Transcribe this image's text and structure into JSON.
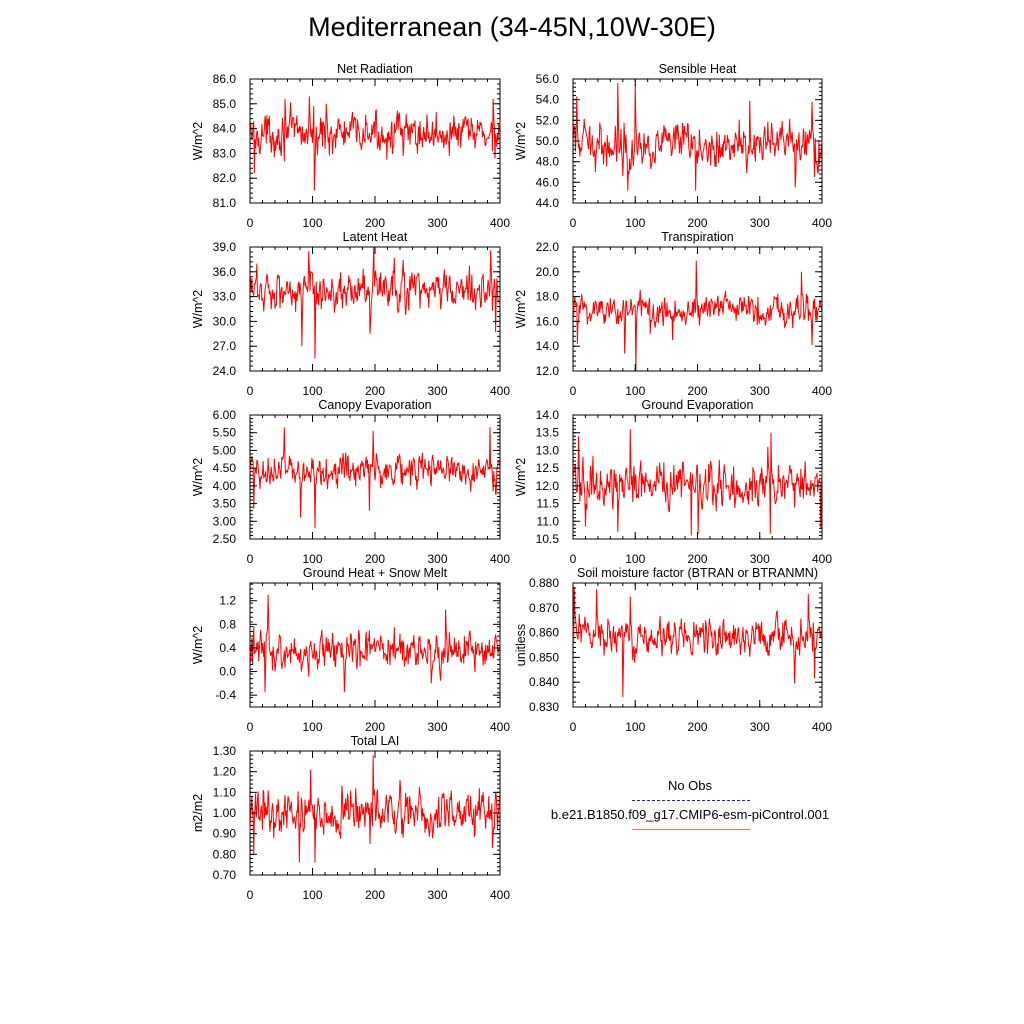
{
  "title": "Mediterranean (34-45N,10W-30E)",
  "legend": {
    "obs_label": "No Obs",
    "model_label": "b.e21.B1850.f09_g17.CMIP6-esm-piControl.001",
    "obs_color": "#20208a",
    "model_color": "#ff0000"
  },
  "chart_data": [
    {
      "type": "line",
      "title": "Net Radiation",
      "ylabel": "W/m^2",
      "xlim": [
        0,
        400
      ],
      "ylim": [
        81.0,
        86.0
      ],
      "yticks": [
        81.0,
        82.0,
        83.0,
        84.0,
        85.0,
        86.0
      ],
      "ytick_labels": [
        "81.0",
        "82.0",
        "83.0",
        "84.0",
        "85.0",
        "86.0"
      ],
      "xticks": [
        0,
        100,
        200,
        300,
        400
      ],
      "xtick_labels": [
        "0",
        "100",
        "200",
        "300",
        "400"
      ],
      "mean": 83.8,
      "amplitude": 0.55,
      "color": "#ff0000",
      "spikes": [
        [
          7,
          82.2
        ],
        [
          56,
          85.2
        ],
        [
          95,
          85.3
        ],
        [
          103,
          81.5
        ],
        [
          122,
          85.0
        ],
        [
          245,
          82.9
        ],
        [
          389,
          85.2
        ],
        [
          392,
          82.8
        ]
      ]
    },
    {
      "type": "line",
      "title": "Sensible Heat",
      "ylabel": "W/m^2",
      "xlim": [
        0,
        400
      ],
      "ylim": [
        44.0,
        56.0
      ],
      "yticks": [
        44.0,
        46.0,
        48.0,
        50.0,
        52.0,
        54.0,
        56.0
      ],
      "ytick_labels": [
        "44.0",
        "46.0",
        "48.0",
        "50.0",
        "52.0",
        "54.0",
        "56.0"
      ],
      "xticks": [
        0,
        100,
        200,
        300,
        400
      ],
      "xtick_labels": [
        "0",
        "100",
        "200",
        "300",
        "400"
      ],
      "mean": 49.6,
      "amplitude": 1.4,
      "color": "#ff0000",
      "spikes": [
        [
          6,
          54.3
        ],
        [
          72,
          55.6
        ],
        [
          88,
          45.2
        ],
        [
          100,
          55.5
        ],
        [
          197,
          45.2
        ],
        [
          284,
          53.9
        ],
        [
          357,
          45.5
        ],
        [
          384,
          53.8
        ],
        [
          388,
          46.5
        ]
      ]
    },
    {
      "type": "line",
      "title": "Latent Heat",
      "ylabel": "W/m^2",
      "xlim": [
        0,
        400
      ],
      "ylim": [
        24.0,
        39.0
      ],
      "yticks": [
        24.0,
        27.0,
        30.0,
        33.0,
        36.0,
        39.0
      ],
      "ytick_labels": [
        "24.0",
        "27.0",
        "30.0",
        "33.0",
        "36.0",
        "39.0"
      ],
      "xticks": [
        0,
        100,
        200,
        300,
        400
      ],
      "xtick_labels": [
        "0",
        "100",
        "200",
        "300",
        "400"
      ],
      "mean": 33.8,
      "amplitude": 1.7,
      "color": "#ff0000",
      "spikes": [
        [
          83,
          27.0
        ],
        [
          94,
          38.5
        ],
        [
          104,
          25.5
        ],
        [
          198,
          39.0
        ],
        [
          192,
          28.5
        ],
        [
          385,
          38.6
        ],
        [
          393,
          28.7
        ]
      ]
    },
    {
      "type": "line",
      "title": "Transpiration",
      "ylabel": "W/m^2",
      "xlim": [
        0,
        400
      ],
      "ylim": [
        12.0,
        22.0
      ],
      "yticks": [
        12.0,
        14.0,
        16.0,
        18.0,
        20.0,
        22.0
      ],
      "ytick_labels": [
        "12.0",
        "14.0",
        "16.0",
        "18.0",
        "20.0",
        "22.0"
      ],
      "xticks": [
        0,
        100,
        200,
        300,
        400
      ],
      "xtick_labels": [
        "0",
        "100",
        "200",
        "300",
        "400"
      ],
      "mean": 17.0,
      "amplitude": 0.9,
      "color": "#ff0000",
      "spikes": [
        [
          7,
          14.2
        ],
        [
          83,
          13.4
        ],
        [
          101,
          12.0
        ],
        [
          124,
          15.0
        ],
        [
          198,
          20.9
        ],
        [
          160,
          14.5
        ],
        [
          367,
          20.0
        ],
        [
          384,
          14.1
        ]
      ]
    },
    {
      "type": "line",
      "title": "Canopy Evaporation",
      "ylabel": "W/m^2",
      "xlim": [
        0,
        400
      ],
      "ylim": [
        2.5,
        6.0
      ],
      "yticks": [
        2.5,
        3.0,
        3.5,
        4.0,
        4.5,
        5.0,
        5.5,
        6.0
      ],
      "ytick_labels": [
        "2.50",
        "3.00",
        "3.50",
        "4.00",
        "4.50",
        "5.00",
        "5.50",
        "6.00"
      ],
      "xticks": [
        0,
        100,
        200,
        300,
        400
      ],
      "xtick_labels": [
        "0",
        "100",
        "200",
        "300",
        "400"
      ],
      "mean": 4.45,
      "amplitude": 0.32,
      "color": "#ff0000",
      "spikes": [
        [
          6,
          3.35
        ],
        [
          55,
          5.65
        ],
        [
          81,
          3.1
        ],
        [
          104,
          2.8
        ],
        [
          197,
          5.55
        ],
        [
          191,
          3.3
        ],
        [
          384,
          5.65
        ],
        [
          393,
          3.75
        ]
      ]
    },
    {
      "type": "line",
      "title": "Ground Evaporation",
      "ylabel": "W/m^2",
      "xlim": [
        0,
        400
      ],
      "ylim": [
        10.5,
        14.0
      ],
      "yticks": [
        10.5,
        11.0,
        11.5,
        12.0,
        12.5,
        13.0,
        13.5,
        14.0
      ],
      "ytick_labels": [
        "10.5",
        "11.0",
        "11.5",
        "12.0",
        "12.5",
        "13.0",
        "13.5",
        "14.0"
      ],
      "xticks": [
        0,
        100,
        200,
        300,
        400
      ],
      "xtick_labels": [
        "0",
        "100",
        "200",
        "300",
        "400"
      ],
      "mean": 12.05,
      "amplitude": 0.42,
      "color": "#ff0000",
      "spikes": [
        [
          9,
          13.4
        ],
        [
          20,
          10.85
        ],
        [
          92,
          13.6
        ],
        [
          72,
          10.7
        ],
        [
          190,
          10.6
        ],
        [
          201,
          10.65
        ],
        [
          317,
          10.65
        ],
        [
          318,
          13.5
        ],
        [
          398,
          10.8
        ],
        [
          313,
          13.1
        ]
      ]
    },
    {
      "type": "line",
      "title": "Ground Heat + Snow Melt",
      "ylabel": "W/m^2",
      "xlim": [
        0,
        400
      ],
      "ylim": [
        -0.6,
        1.5
      ],
      "yticks": [
        -0.4,
        0.0,
        0.4,
        0.8,
        1.2
      ],
      "ytick_labels": [
        "-0.4",
        "0.0",
        "0.4",
        "0.8",
        "1.2"
      ],
      "xticks": [
        0,
        100,
        200,
        300,
        400
      ],
      "xtick_labels": [
        "0",
        "100",
        "200",
        "300",
        "400"
      ],
      "mean": 0.35,
      "amplitude": 0.22,
      "color": "#ff0000",
      "spikes": [
        [
          29,
          1.3
        ],
        [
          24,
          -0.35
        ],
        [
          151,
          -0.35
        ],
        [
          313,
          1.05
        ],
        [
          290,
          -0.2
        ]
      ]
    },
    {
      "type": "line",
      "title": "Soil moisture factor (BTRAN or BTRANMN)",
      "ylabel": "unitless",
      "xlim": [
        0,
        400
      ],
      "ylim": [
        0.83,
        0.88
      ],
      "yticks": [
        0.83,
        0.84,
        0.85,
        0.86,
        0.87,
        0.88
      ],
      "ytick_labels": [
        "0.830",
        "0.840",
        "0.850",
        "0.860",
        "0.870",
        "0.880"
      ],
      "xticks": [
        0,
        100,
        200,
        300,
        400
      ],
      "xtick_labels": [
        "0",
        "100",
        "200",
        "300",
        "400"
      ],
      "mean": 0.8585,
      "amplitude": 0.0048,
      "color": "#ff0000",
      "spikes": [
        [
          2,
          0.8785
        ],
        [
          38,
          0.8775
        ],
        [
          80,
          0.834
        ],
        [
          92,
          0.8745
        ],
        [
          356,
          0.8395
        ],
        [
          388,
          0.8415
        ],
        [
          378,
          0.8755
        ]
      ]
    },
    {
      "type": "line",
      "title": "Total LAI",
      "ylabel": "m2/m2",
      "xlim": [
        0,
        400
      ],
      "ylim": [
        0.7,
        1.3
      ],
      "yticks": [
        0.7,
        0.8,
        0.9,
        1.0,
        1.1,
        1.2,
        1.3
      ],
      "ytick_labels": [
        "0.70",
        "0.80",
        "0.90",
        "1.00",
        "1.10",
        "1.20",
        "1.30"
      ],
      "xticks": [
        0,
        100,
        200,
        300,
        400
      ],
      "xtick_labels": [
        "0",
        "100",
        "200",
        "300",
        "400"
      ],
      "mean": 1.0,
      "amplitude": 0.075,
      "color": "#ff0000",
      "spikes": [
        [
          6,
          0.8
        ],
        [
          79,
          0.76
        ],
        [
          97,
          1.21
        ],
        [
          104,
          0.76
        ],
        [
          197,
          1.28
        ],
        [
          192,
          0.85
        ],
        [
          367,
          1.12
        ],
        [
          388,
          0.83
        ]
      ]
    }
  ]
}
